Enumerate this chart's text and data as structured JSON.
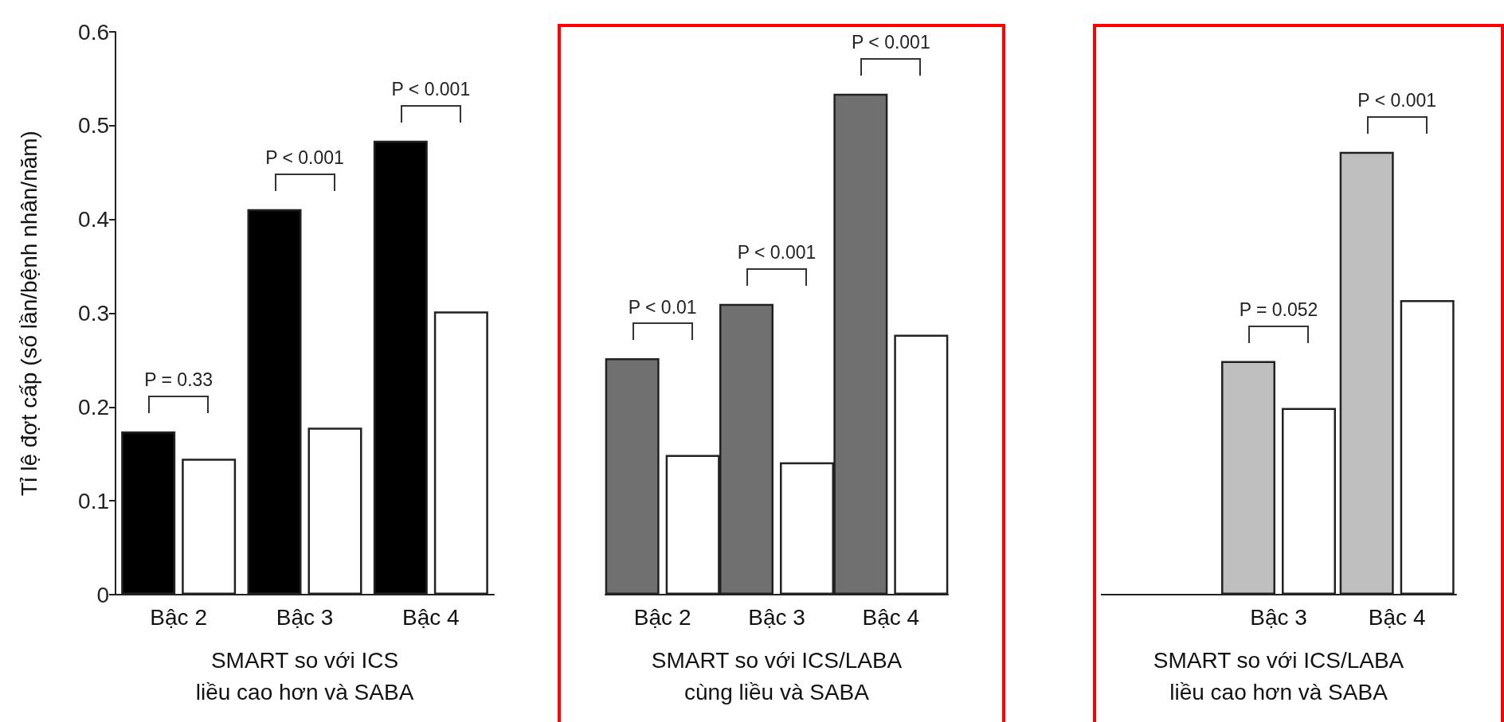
{
  "chart_data": [
    {
      "type": "bar",
      "ylabel": "Tỉ lệ đợt cấp (số lần/bệnh nhân/năm)",
      "xlabel": "SMART so với ICS\nliều cao hơn và SABA",
      "categories": [
        "Bậc 2",
        "Bậc 3",
        "Bậc 4"
      ],
      "series": [
        {
          "color": "#000000",
          "values": [
            0.174,
            0.411,
            0.484
          ]
        },
        {
          "color": "#ffffff",
          "values": [
            0.145,
            0.178,
            0.302
          ]
        }
      ],
      "ylim": [
        0,
        0.6
      ],
      "yticks": [
        0,
        0.1,
        0.2,
        0.3,
        0.4,
        0.5,
        0.6
      ],
      "annotations": [
        "P = 0.33",
        "P < 0.001",
        "P < 0.001"
      ]
    },
    {
      "type": "bar",
      "xlabel": "SMART so với ICS/LABA\ncùng liều và SABA",
      "categories": [
        "Bậc 2",
        "Bậc 3",
        "Bậc 4"
      ],
      "series": [
        {
          "color": "#707070",
          "values": [
            0.252,
            0.31,
            0.534
          ]
        },
        {
          "color": "#ffffff",
          "values": [
            0.149,
            0.141,
            0.277
          ]
        }
      ],
      "ylim": [
        0,
        0.6
      ],
      "tick_labels": "x",
      "annotations": [
        "P < 0.01",
        "P < 0.001",
        "P < 0.001"
      ]
    },
    {
      "type": "bar",
      "xlabel": "SMART so với ICS/LABA\nliều cao hơn và SABA",
      "categories": [
        null,
        "Bậc 3",
        "Bậc 4"
      ],
      "series": [
        {
          "color": "#bfbfbf",
          "values": [
            null,
            0.249,
            0.472
          ]
        },
        {
          "color": "#ffffff",
          "values": [
            null,
            0.199,
            0.314
          ]
        }
      ],
      "ylim": [
        0,
        0.6
      ],
      "tick_labels": "x",
      "annotations": [
        "P = 0.052",
        "P < 0.001"
      ]
    }
  ]
}
